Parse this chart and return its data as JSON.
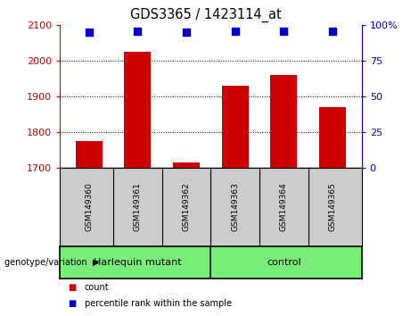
{
  "title": "GDS3365 / 1423114_at",
  "samples": [
    "GSM149360",
    "GSM149361",
    "GSM149362",
    "GSM149363",
    "GSM149364",
    "GSM149365"
  ],
  "bar_values": [
    1775,
    2025,
    1715,
    1930,
    1960,
    1870
  ],
  "percentile_values": [
    95,
    96,
    95,
    96,
    96,
    96
  ],
  "ylim_left": [
    1700,
    2100
  ],
  "ylim_right": [
    0,
    100
  ],
  "yticks_left": [
    1700,
    1800,
    1900,
    2000,
    2100
  ],
  "yticks_right": [
    0,
    25,
    50,
    75,
    100
  ],
  "bar_color": "#cc0000",
  "dot_color": "#0000cc",
  "group1_label": "Harlequin mutant",
  "group2_label": "control",
  "group1_indices": [
    0,
    1,
    2
  ],
  "group2_indices": [
    3,
    4,
    5
  ],
  "group_bg_color": "#77ee77",
  "sample_area_color": "#cccccc",
  "legend_count_label": "count",
  "legend_pct_label": "percentile rank within the sample",
  "genotype_label": "genotype/variation"
}
